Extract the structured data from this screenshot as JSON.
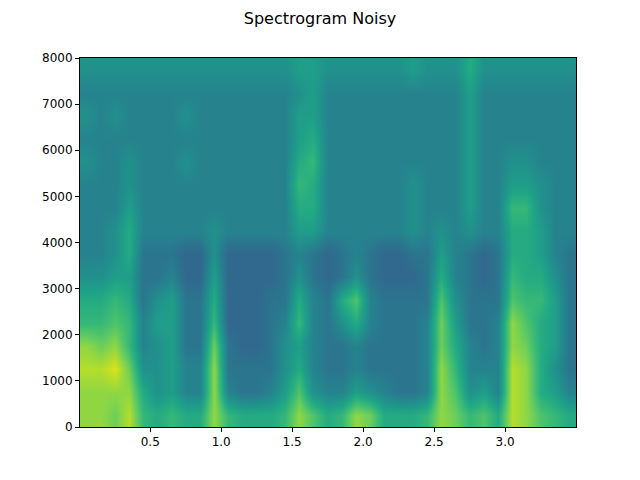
{
  "chart_data": {
    "type": "heatmap",
    "title": "Spectrogram Noisy",
    "color": "Viridis",
    "x": [
      0.05,
      0.15,
      0.25,
      0.35,
      0.45,
      0.55,
      0.65,
      0.75,
      0.85,
      0.95,
      1.05,
      1.15,
      1.25,
      1.35,
      1.45,
      1.55,
      1.65,
      1.75,
      1.85,
      1.95,
      2.05,
      2.15,
      2.25,
      2.35,
      2.45,
      2.55,
      2.65,
      2.75,
      2.85,
      2.95,
      3.05,
      3.15,
      3.25,
      3.35,
      3.45
    ],
    "y": [
      250,
      750,
      1250,
      1750,
      2250,
      2750,
      3250,
      3750,
      4250,
      4750,
      5250,
      5750,
      6250,
      6750,
      7250,
      7750
    ],
    "cells": [
      [
        8.5,
        8.5,
        8,
        9,
        7,
        6.5,
        7,
        6.5,
        6.5,
        8.5,
        7,
        6.5,
        6.5,
        6.5,
        7,
        8.5,
        7.5,
        6.5,
        7,
        8.5,
        8,
        6.5,
        6.5,
        6.5,
        7,
        8.5,
        8,
        7,
        7.5,
        6.5,
        9,
        8.5,
        7.5,
        7,
        6.5
      ],
      [
        8.5,
        8.5,
        8.5,
        8.5,
        6.5,
        5.5,
        6,
        5,
        5,
        8.5,
        5,
        4.5,
        4.5,
        5,
        6,
        7.5,
        5.5,
        5,
        5,
        6,
        5.5,
        5,
        4.5,
        4.5,
        5,
        8.5,
        7.5,
        5.5,
        6,
        5,
        9,
        8.5,
        6.5,
        6,
        5
      ],
      [
        9,
        9,
        9.5,
        8,
        5.5,
        5.5,
        6,
        5,
        5,
        8.5,
        4.5,
        4.5,
        4.5,
        4.5,
        5.5,
        6.5,
        5,
        4.5,
        4.5,
        5,
        4.5,
        4.5,
        4.5,
        4.5,
        5,
        8.5,
        7,
        5,
        5,
        5,
        9,
        8.5,
        6.5,
        5.5,
        4.5
      ],
      [
        8.5,
        8,
        8.5,
        7,
        5,
        5.5,
        6,
        4.5,
        4.5,
        8,
        4.5,
        4,
        4,
        4.5,
        5.5,
        6,
        5,
        4.5,
        4.5,
        5,
        4.5,
        4.5,
        4.5,
        4.5,
        5,
        8,
        6.5,
        5,
        4.5,
        5,
        8.5,
        8,
        6.5,
        6,
        4.5
      ],
      [
        7,
        7,
        7.5,
        7,
        5,
        6,
        6,
        4.5,
        4.5,
        7,
        4,
        4,
        4,
        4.5,
        5,
        7,
        5,
        4.5,
        5.5,
        6.5,
        5,
        4.5,
        4.5,
        4.5,
        5,
        8,
        6,
        4.5,
        4.5,
        5,
        8.5,
        7.5,
        6.5,
        6,
        4.5
      ],
      [
        6.5,
        6.5,
        7,
        6.5,
        4.5,
        5.5,
        6,
        4.5,
        4.5,
        6.5,
        4,
        4,
        4,
        4.5,
        4.5,
        6.5,
        5,
        4.5,
        6.5,
        7.5,
        5,
        4.5,
        4.5,
        4.5,
        4.5,
        7.5,
        5.5,
        4.5,
        4.5,
        4.5,
        7.5,
        7,
        7,
        6,
        4.5
      ],
      [
        5.5,
        5.5,
        6,
        6,
        4.5,
        4.5,
        5,
        4,
        4,
        6,
        4,
        4,
        4,
        4,
        4.5,
        5.5,
        4.5,
        4,
        4.5,
        5.5,
        4.5,
        4,
        4,
        4,
        4.5,
        6.5,
        5,
        4.5,
        4,
        4.5,
        7,
        6.5,
        6.5,
        5.5,
        4.5
      ],
      [
        5,
        5,
        5.5,
        6.5,
        4.5,
        4.5,
        4.5,
        4,
        4,
        5.5,
        4,
        4,
        4,
        4,
        4.5,
        5,
        4.5,
        4,
        4.5,
        5,
        4.5,
        4,
        4,
        4.5,
        4.5,
        6,
        5,
        4.5,
        4,
        4.5,
        6.5,
        6.5,
        6,
        5,
        4.5
      ],
      [
        5,
        5,
        5.5,
        6.5,
        5,
        5,
        5,
        5,
        5,
        5.5,
        5,
        5,
        5,
        5,
        5,
        6,
        6,
        5,
        5,
        5,
        5,
        5,
        5,
        5.5,
        5,
        5.5,
        5,
        5.5,
        5,
        5,
        6.5,
        6.5,
        6,
        5,
        5
      ],
      [
        5,
        5,
        5,
        6,
        5,
        5,
        5,
        5,
        5,
        5,
        5,
        5,
        5,
        5,
        5,
        6.5,
        6.5,
        5,
        5,
        5,
        5,
        5,
        5,
        5.5,
        5,
        5,
        5,
        6,
        5,
        5,
        7,
        7,
        5.5,
        5,
        5
      ],
      [
        5,
        5,
        5,
        5.5,
        5,
        5,
        5,
        5,
        5,
        5,
        5,
        5,
        5,
        5,
        5,
        7,
        6.5,
        5,
        5,
        5,
        5,
        5,
        5,
        5.5,
        5,
        5,
        5,
        6,
        5,
        5,
        6,
        6,
        5.5,
        5,
        5
      ],
      [
        5.5,
        5,
        5,
        5.5,
        5,
        5,
        5,
        5.5,
        5,
        5,
        5,
        5,
        5,
        5,
        5,
        6.5,
        7,
        5,
        5,
        5,
        5,
        5,
        5,
        5,
        5,
        5,
        5,
        6,
        5,
        5,
        5.5,
        5.5,
        5,
        5,
        5
      ],
      [
        5,
        5,
        5,
        5,
        5,
        5,
        5,
        5,
        5,
        5,
        5,
        5,
        5,
        5,
        5,
        6,
        6.5,
        5,
        5,
        5,
        5,
        5,
        5,
        5,
        5,
        5,
        5,
        6,
        5,
        5,
        5,
        5,
        5,
        5,
        5
      ],
      [
        5.5,
        5,
        5.5,
        5,
        5,
        5,
        5,
        5.5,
        5,
        5,
        5,
        5,
        5,
        5,
        5,
        6,
        6,
        5,
        5,
        5,
        5,
        5,
        5,
        5,
        5,
        5,
        5,
        6,
        5,
        5,
        5,
        5,
        5,
        5,
        5
      ],
      [
        5,
        5,
        5,
        5,
        5,
        5,
        5,
        5,
        5,
        5,
        5,
        5,
        5,
        5,
        5,
        5.5,
        6,
        5,
        5,
        5,
        5,
        5,
        5,
        5,
        5,
        5,
        5,
        6,
        5,
        5,
        5,
        5,
        5,
        5,
        5
      ],
      [
        5.5,
        5.5,
        5.5,
        5.5,
        5.5,
        5.5,
        5.5,
        5.5,
        5.5,
        5.5,
        5.5,
        5.5,
        5.5,
        5.5,
        5.5,
        6,
        6,
        5.5,
        5.5,
        5.5,
        5.5,
        5.5,
        5.5,
        6,
        5.5,
        5.5,
        5.5,
        6.5,
        5.5,
        5.5,
        5.5,
        5.5,
        5.5,
        5.5,
        5.5
      ]
    ],
    "zlim": [
      1,
      10
    ],
    "xlim": [
      0.005,
      3.5
    ],
    "ylim": [
      0,
      8000
    ],
    "xticks": [
      0.5,
      {
        "value": 1,
        "label": "1.0"
      },
      1.5,
      {
        "value": 2,
        "label": "2.0"
      },
      2.5,
      {
        "value": 3,
        "label": "3.0"
      }
    ],
    "yticks": [
      0,
      1000,
      2000,
      3000,
      4000,
      5000,
      6000,
      7000,
      8000
    ],
    "grid": false
  }
}
